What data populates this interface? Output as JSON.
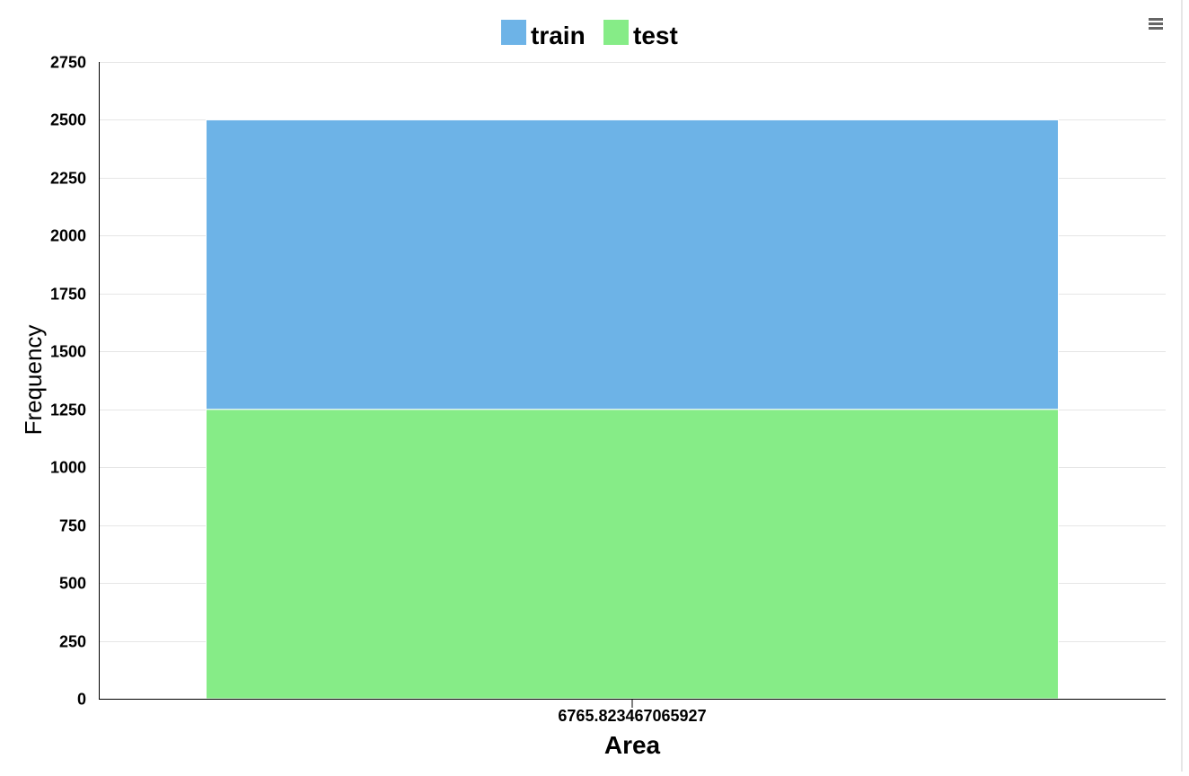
{
  "chart_data": {
    "type": "bar",
    "stacked": true,
    "categories": [
      "6765.823467065927"
    ],
    "series": [
      {
        "name": "train",
        "values": [
          1250
        ],
        "color": "#6db3e7"
      },
      {
        "name": "test",
        "values": [
          1250
        ],
        "color": "#86ec87"
      }
    ],
    "xlabel": "Area",
    "ylabel": "Frequency",
    "ylim": [
      0,
      2750
    ],
    "yticks": [
      0,
      250,
      500,
      750,
      1000,
      1250,
      1500,
      1750,
      2000,
      2250,
      2500,
      2750
    ],
    "grid": true,
    "legend_position": "top-center"
  },
  "menu": {
    "icon": "hamburger-menu-icon"
  }
}
